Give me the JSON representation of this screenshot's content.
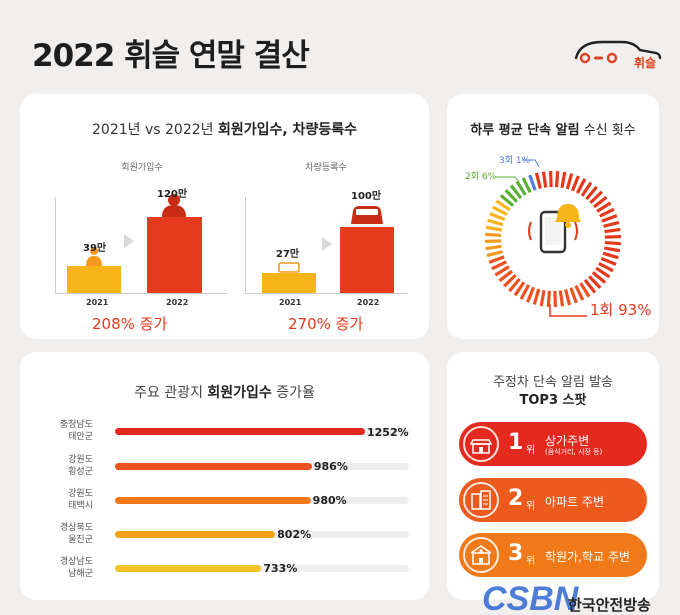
{
  "page_title": "2022 휘슬 연말 결산",
  "logo_text": "휘슬",
  "members_vehicles": {
    "title_prefix": "2021년 vs 2022년 ",
    "title_bold": "회원가입수, 차량등록수",
    "members": {
      "label": "회원가입수",
      "years": [
        "2021",
        "2022"
      ],
      "value_labels": [
        "39만",
        "120만"
      ],
      "increase": "208% 증가"
    },
    "vehicles": {
      "label": "차량등록수",
      "years": [
        "2021",
        "2022"
      ],
      "value_labels": [
        "27만",
        "100만"
      ],
      "increase": "270% 증가"
    }
  },
  "daily_alerts": {
    "title_bold": "하루 평균 단속 알림",
    "title_rest": " 수신 횟수",
    "labels": {
      "once": "1회 93%",
      "twice": "2회 6%",
      "thrice": "3회 1%"
    }
  },
  "tourist_growth": {
    "title_prefix": "주요 관광지 ",
    "title_bold": "회원가입수",
    "title_suffix": " 증가율",
    "rows": [
      {
        "line1": "충청남도",
        "line2": "태안군",
        "pct": "1252%"
      },
      {
        "line1": "강원도",
        "line2": "횡성군",
        "pct": "986%"
      },
      {
        "line1": "강원도",
        "line2": "태백시",
        "pct": "980%"
      },
      {
        "line1": "경상북도",
        "line2": "울진군",
        "pct": "802%"
      },
      {
        "line1": "경상남도",
        "line2": "남해군",
        "pct": "733%"
      }
    ]
  },
  "top3": {
    "title_line1": "주정차 단속 알림 발송",
    "title_line2": "TOP3 스팟",
    "suffix": "위",
    "spots": [
      {
        "rank": "1",
        "name": "상가주변",
        "sub": "(음식거리, 시장 등)",
        "color": "#e42a1f"
      },
      {
        "rank": "2",
        "name": "아파트 주변",
        "sub": "",
        "color": "#ec5a1e"
      },
      {
        "rank": "3",
        "name": "학원가,학교 주변",
        "sub": "",
        "color": "#f07a1a"
      }
    ]
  },
  "watermark": {
    "logo": "CSBN",
    "text": "한국안전방송"
  },
  "chart_data": [
    {
      "type": "bar",
      "title": "회원가입수",
      "categories": [
        "2021",
        "2022"
      ],
      "values": [
        39,
        120
      ],
      "value_labels": [
        "39만",
        "120만"
      ]
    },
    {
      "type": "bar",
      "title": "차량등록수",
      "categories": [
        "2021",
        "2022"
      ],
      "values": [
        27,
        100
      ],
      "value_labels": [
        "27만",
        "100만"
      ]
    },
    {
      "type": "pie",
      "title": "하루 평균 단속 알림 수신 횟수",
      "categories": [
        "1회",
        "2회",
        "3회"
      ],
      "values": [
        93,
        6,
        1
      ]
    },
    {
      "type": "bar",
      "title": "주요 관광지 회원가입수 증가율",
      "categories": [
        "충청남도 태안군",
        "강원도 횡성군",
        "강원도 태백시",
        "경상북도 울진군",
        "경상남도 남해군"
      ],
      "values": [
        1252,
        986,
        980,
        802,
        733
      ]
    }
  ],
  "colors": {
    "accent": "#e4391c",
    "orange": "#f39a1e",
    "yellow": "#f6b418",
    "green": "#5ab132",
    "blue": "#4a7fe0",
    "gray": "#d9d9d9"
  }
}
